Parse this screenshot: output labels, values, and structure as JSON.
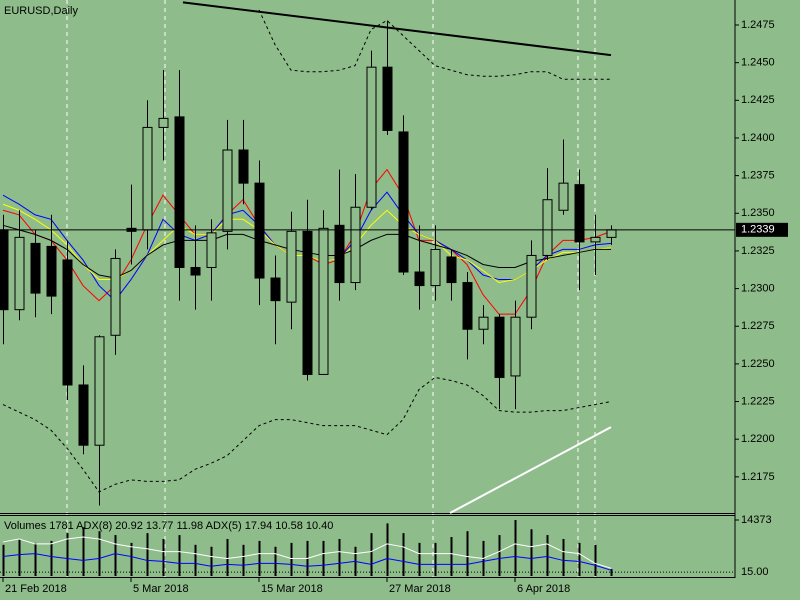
{
  "chart_data": [
    {
      "type": "candlestick",
      "title": "EURUSD,Daily",
      "background": "#8fbc8b",
      "categories": [
        "21 Feb 2018",
        null,
        null,
        null,
        null,
        null,
        null,
        null,
        "5 Mar 2018",
        null,
        null,
        null,
        null,
        null,
        null,
        null,
        "15 Mar 2018",
        null,
        null,
        null,
        null,
        null,
        null,
        null,
        "27 Mar 2018",
        null,
        null,
        null,
        null,
        null,
        null,
        null,
        "6 Apr 2018",
        null,
        null,
        null,
        null,
        null,
        null
      ],
      "open": [
        1.2339,
        1.2286,
        1.233,
        1.2328,
        1.2319,
        1.2236,
        1.2196,
        1.2269,
        1.234,
        1.2339,
        1.2407,
        1.2414,
        1.2314,
        1.2314,
        1.2338,
        1.2392,
        1.237,
        1.2307,
        1.2291,
        1.2338,
        1.2243,
        1.2342,
        1.2304,
        1.2354,
        1.2447,
        1.2404,
        1.2311,
        1.2302,
        1.2321,
        1.2304,
        1.2273,
        1.2281,
        1.2242,
        1.2281,
        1.2322,
        1.2352,
        1.2369,
        1.2331,
        1.2334
      ],
      "high": [
        1.2349,
        1.2352,
        1.2339,
        1.2349,
        1.2332,
        1.2249,
        1.2269,
        1.2326,
        1.2369,
        1.2425,
        1.2445,
        1.2445,
        1.2342,
        1.2346,
        1.2412,
        1.2412,
        1.2385,
        1.2322,
        1.2351,
        1.2359,
        1.2352,
        1.2379,
        1.2376,
        1.2458,
        1.2478,
        1.2415,
        1.2342,
        1.2342,
        1.2326,
        1.2311,
        1.2289,
        1.2283,
        1.2292,
        1.2332,
        1.238,
        1.2399,
        1.2379,
        1.2349,
        1.2342
      ],
      "low": [
        1.2263,
        1.2279,
        1.2281,
        1.2283,
        1.2226,
        1.219,
        1.2156,
        1.2256,
        1.2316,
        1.2326,
        1.2385,
        1.2292,
        1.2286,
        1.2292,
        1.2326,
        1.2356,
        1.2289,
        1.2263,
        1.2273,
        1.2239,
        1.2243,
        1.2292,
        1.2299,
        1.2352,
        1.2402,
        1.2309,
        1.2286,
        1.2292,
        1.2292,
        1.2253,
        1.2263,
        1.222,
        1.222,
        1.2273,
        1.2319,
        1.2349,
        1.2299,
        1.2309,
        1.2329
      ],
      "close": [
        1.2286,
        1.2334,
        1.2297,
        1.2295,
        1.2236,
        1.2196,
        1.2268,
        1.232,
        1.2338,
        1.2407,
        1.2413,
        1.2314,
        1.2309,
        1.2337,
        1.2392,
        1.237,
        1.2307,
        1.2292,
        1.2338,
        1.2243,
        1.234,
        1.2304,
        1.2354,
        1.2447,
        1.2405,
        1.2311,
        1.2302,
        1.2326,
        1.2304,
        1.2273,
        1.2281,
        1.2241,
        1.2281,
        1.2322,
        1.2359,
        1.237,
        1.2331,
        1.2334,
        1.2339
      ],
      "series": [
        {
          "color": "#ff0000",
          "values": [
            1.2352,
            1.2349,
            1.2336,
            1.2332,
            1.2319,
            1.2302,
            1.2292,
            1.2302,
            1.2319,
            1.2342,
            1.2362,
            1.2349,
            1.2336,
            1.2336,
            1.2349,
            1.2359,
            1.2342,
            1.2329,
            1.2322,
            1.2322,
            1.2316,
            1.2319,
            1.2336,
            1.2366,
            1.2379,
            1.2362,
            1.2332,
            1.2332,
            1.2326,
            1.2316,
            1.2296,
            1.2283,
            1.2283,
            1.2299,
            1.2322,
            1.2332,
            1.2332,
            1.2334,
            1.2338
          ]
        },
        {
          "color": "#0000ff",
          "values": [
            1.2362,
            1.2356,
            1.2349,
            1.2346,
            1.2332,
            1.2319,
            1.2302,
            1.2292,
            1.2306,
            1.2322,
            1.2346,
            1.2336,
            1.2332,
            1.2336,
            1.2349,
            1.2352,
            1.2342,
            1.2329,
            1.2322,
            1.2322,
            1.2318,
            1.232,
            1.2332,
            1.2352,
            1.2364,
            1.2349,
            1.2336,
            1.2332,
            1.2326,
            1.2319,
            1.2309,
            1.2306,
            1.2306,
            1.2312,
            1.2322,
            1.2326,
            1.2326,
            1.2329,
            1.233
          ]
        },
        {
          "color": "#ffff00",
          "values": [
            1.2356,
            1.2352,
            1.2346,
            1.2339,
            1.2329,
            1.2316,
            1.2306,
            1.2306,
            1.2312,
            1.2322,
            1.2332,
            1.2342,
            1.2336,
            1.2336,
            1.2346,
            1.2346,
            1.2339,
            1.2329,
            1.2322,
            1.2322,
            1.2318,
            1.232,
            1.2329,
            1.2342,
            1.2352,
            1.2342,
            1.2336,
            1.2332,
            1.2322,
            1.2319,
            1.2312,
            1.2304,
            1.2306,
            1.2312,
            1.2319,
            1.2324,
            1.2324,
            1.2326,
            1.2327
          ]
        },
        {
          "color": "#000000",
          "values": [
            1.2342,
            1.2339,
            1.2336,
            1.2332,
            1.2326,
            1.2316,
            1.2309,
            1.2307,
            1.2312,
            1.2322,
            1.2329,
            1.2332,
            1.2332,
            1.2332,
            1.2336,
            1.2336,
            1.2332,
            1.2329,
            1.2326,
            1.2324,
            1.2322,
            1.2322,
            1.2326,
            1.2332,
            1.2336,
            1.2336,
            1.2332,
            1.2329,
            1.2326,
            1.2322,
            1.2316,
            1.2314,
            1.2314,
            1.2318,
            1.232,
            1.2322,
            1.2324,
            1.2326,
            1.2326
          ]
        },
        {
          "color": "#000000",
          "dashed": true,
          "values": [
            null,
            null,
            null,
            null,
            null,
            null,
            null,
            null,
            null,
            null,
            null,
            null,
            null,
            null,
            null,
            null,
            1.2485,
            1.2462,
            1.2445,
            1.2444,
            1.2444,
            1.2445,
            1.2448,
            1.2472,
            1.2478,
            1.2468,
            1.2458,
            1.2448,
            1.2445,
            1.2442,
            1.2441,
            1.2441,
            1.2442,
            1.2444,
            1.2444,
            1.2439,
            1.2439,
            1.2439,
            1.2439
          ]
        },
        {
          "color": "#000000",
          "dashed": true,
          "values": [
            1.2223,
            1.2218,
            1.2213,
            1.2206,
            1.2194,
            1.218,
            1.2165,
            1.217,
            1.2173,
            1.2172,
            1.2172,
            1.2173,
            1.218,
            1.2184,
            1.2189,
            1.2199,
            1.2209,
            1.2213,
            1.2213,
            1.2211,
            1.2209,
            1.2209,
            1.2209,
            1.2206,
            1.2203,
            1.2213,
            1.2233,
            1.2241,
            1.2239,
            1.2236,
            1.2229,
            1.2219,
            1.2218,
            1.2218,
            1.2219,
            1.2219,
            1.2221,
            1.2223,
            1.2225
          ]
        }
      ],
      "trendlines": [
        {
          "color": "#000000",
          "x": [
            11.25,
            38
          ],
          "y": [
            1.249,
            1.2455
          ]
        },
        {
          "color": "#ffffff",
          "x": [
            27.94,
            38
          ],
          "y": [
            1.2151,
            1.2208
          ]
        }
      ],
      "last_price": 1.2339,
      "ylim": [
        1.2151,
        1.24916
      ],
      "yticks": [
        1.2175,
        {
          "value": 1.22,
          "label": "1.2200"
        },
        1.2225,
        {
          "value": 1.225,
          "label": "1.2250"
        },
        1.2275,
        {
          "value": 1.23,
          "label": "1.2300"
        },
        1.2325,
        {
          "value": 1.235,
          "label": "1.2350"
        },
        1.2375,
        {
          "value": 1.24,
          "label": "1.2400"
        },
        1.2425,
        {
          "value": 1.245,
          "label": "1.2450"
        },
        1.2475
      ]
    },
    {
      "type": "volume",
      "title": "Volumes 1781 ADX(8) 20.92 13.77 11.98 ADX(5) 17.94 10.58 10.40",
      "values": [
        8000,
        9500,
        8500,
        9000,
        11000,
        12500,
        11500,
        10500,
        8500,
        11000,
        9500,
        10500,
        8000,
        7500,
        9500,
        8000,
        9000,
        7500,
        8500,
        9000,
        9000,
        9500,
        7500,
        11000,
        13500,
        11000,
        8500,
        8500,
        10000,
        11500,
        9000,
        10500,
        14373,
        12000,
        10500,
        9500,
        8500,
        8000,
        1781
      ],
      "color": "#000000",
      "ylim": [
        0,
        15658
      ],
      "yticks": [
        14373
      ],
      "y2lim": [
        9,
        103
      ],
      "y2ticks": [
        {
          "value": 15,
          "label": "15.00"
        }
      ],
      "series": [
        {
          "color": "#ffffff",
          "axis": "y2",
          "values": [
            61.5,
            66,
            58.5,
            58.5,
            66,
            69,
            66,
            58.5,
            54,
            51,
            46.5,
            46.5,
            43.5,
            39,
            36,
            39,
            43.5,
            43.5,
            36,
            36,
            43.5,
            46.5,
            43.5,
            46.5,
            58.5,
            54,
            43.5,
            43.5,
            43.5,
            39,
            36,
            46.5,
            58.5,
            54,
            58.5,
            46.5,
            43.5,
            28.5,
            20.92
          ]
        },
        {
          "color": "#0000ff",
          "axis": "y2",
          "values": [
            39,
            42,
            43.5,
            39,
            36,
            33,
            36,
            43.5,
            39,
            33,
            31.5,
            28.5,
            28.5,
            24,
            27,
            25.5,
            28.5,
            28.5,
            27,
            24,
            25.5,
            28.5,
            31.5,
            27,
            36,
            31.5,
            27,
            27,
            27,
            27,
            31.5,
            36,
            39,
            36,
            39,
            33,
            31.5,
            25.5,
            17.94
          ]
        }
      ]
    }
  ]
}
